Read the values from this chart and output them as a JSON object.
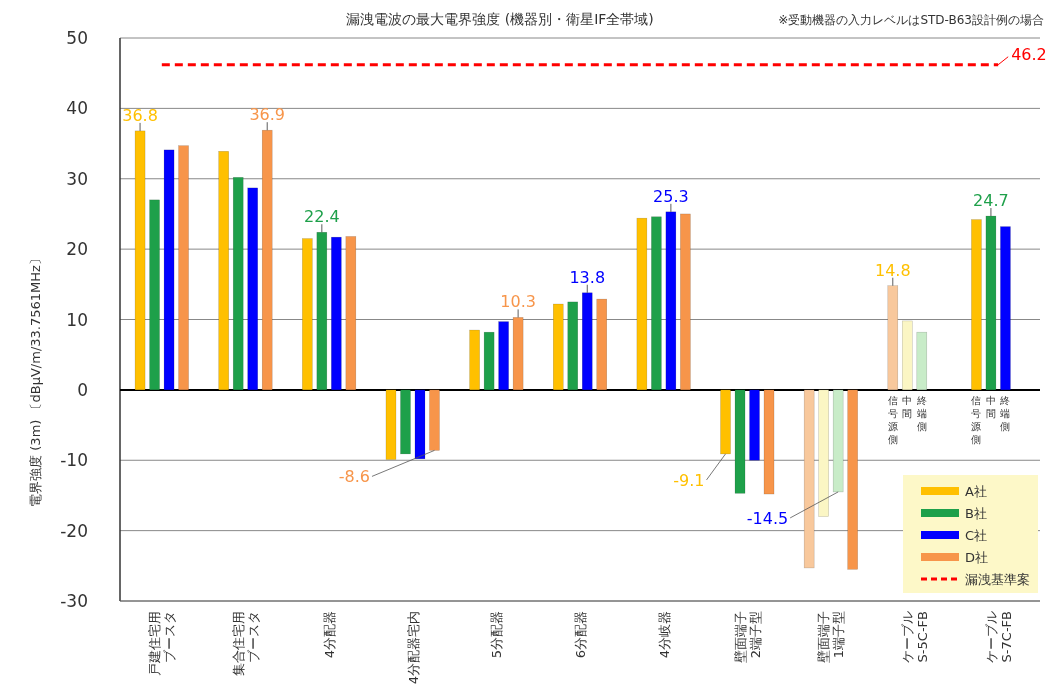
{
  "chart_data": {
    "type": "bar",
    "title": "漏洩電波の最大電界強度 (機器別・衛星IF全帯域)",
    "ylabel": "電界強度 (3m) 〔dBμV/m/33.7561MHz〕",
    "categories": [
      "戸建住宅用ブースタ",
      "集合住宅用ブースタ",
      "4分配器",
      "4分配器宅内",
      "5分配器",
      "6分配器",
      "4分岐器",
      "壁面端子2端子型",
      "壁面端子1端子型",
      "ケーブルS-5C-FB",
      "ケーブルS-7C-FB"
    ],
    "series": [
      {
        "name": "A社",
        "color": "#ffc000",
        "colors": [
          "#ffc000",
          "#ffc000",
          "#ffc000",
          "#ffc000",
          "#ffc000",
          "#ffc000",
          "#ffc000",
          "#ffc000",
          "#f8c89c",
          "#f8c89c",
          "#ffc000"
        ],
        "values": [
          36.8,
          33.9,
          21.5,
          -9.9,
          8.5,
          12.2,
          24.4,
          -9.1,
          -25.3,
          14.8,
          24.2
        ],
        "value_labels": [
          "36.8",
          null,
          null,
          null,
          null,
          null,
          null,
          "-9.1",
          null,
          "14.8",
          null
        ]
      },
      {
        "name": "B社",
        "color": "#1ea04a",
        "colors": [
          "#1ea04a",
          "#1ea04a",
          "#1ea04a",
          "#1ea04a",
          "#1ea04a",
          "#1ea04a",
          "#1ea04a",
          "#1ea04a",
          "#fbf6c4",
          "#fbf6c4",
          "#1ea04a"
        ],
        "values": [
          27.0,
          30.2,
          22.4,
          -9.1,
          8.2,
          12.5,
          24.6,
          -14.7,
          -18.0,
          9.8,
          24.7
        ],
        "value_labels": [
          null,
          null,
          "22.4",
          null,
          null,
          null,
          null,
          null,
          null,
          null,
          "24.7"
        ]
      },
      {
        "name": "C社",
        "color": "#0000ff",
        "colors": [
          "#0000ff",
          "#0000ff",
          "#0000ff",
          "#0000ff",
          "#0000ff",
          "#0000ff",
          "#0000ff",
          "#0000ff",
          "#c8ecc8",
          "#c8ecc8",
          "#0000ff"
        ],
        "values": [
          34.1,
          28.7,
          21.7,
          -9.8,
          9.7,
          13.8,
          25.3,
          -10.0,
          -14.5,
          8.2,
          23.2
        ],
        "value_labels": [
          null,
          null,
          null,
          null,
          null,
          "13.8",
          "25.3",
          null,
          "-14.5",
          null,
          null
        ]
      },
      {
        "name": "D社",
        "color": "#f7954a",
        "values": [
          34.7,
          36.9,
          21.8,
          -8.6,
          10.3,
          12.9,
          25.0,
          -14.8,
          -25.5,
          null,
          null
        ],
        "value_labels": [
          null,
          "36.9",
          null,
          "-8.6",
          "10.3",
          null,
          null,
          null,
          null,
          null,
          null
        ]
      },
      {
        "name": "漏洩基準案",
        "type": "line",
        "color": "#ff0000",
        "line_style": "dashed",
        "values": [
          46.2,
          46.2,
          46.2,
          46.2,
          46.2,
          46.2,
          46.2,
          46.2,
          46.2,
          46.2,
          46.2
        ],
        "value_labels": [
          null,
          null,
          null,
          null,
          null,
          null,
          null,
          null,
          null,
          null,
          "46.2"
        ]
      }
    ],
    "annotations": [
      "※受動機器の入力レベルはSTD-B63設計例の場合",
      "信号源側",
      "中間",
      "終端側",
      "信号源側",
      "中間",
      "終端側"
    ],
    "ylim": [
      -30,
      50
    ],
    "yticks": [
      -30,
      -20,
      -10,
      0,
      10,
      20,
      30,
      40,
      50
    ],
    "grid": "y",
    "legend": "bottom right"
  }
}
